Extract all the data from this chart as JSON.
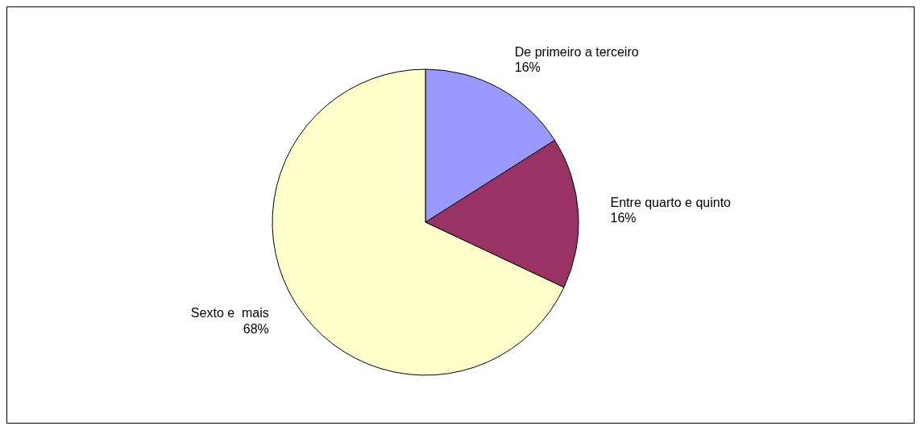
{
  "chart_data": {
    "type": "pie",
    "categories": [
      "De primeiro a terceiro",
      "Entre quarto e quinto",
      "Sexto e  mais"
    ],
    "values": [
      16,
      16,
      68
    ],
    "colors": [
      "#9999ff",
      "#993366",
      "#ffffcc"
    ],
    "value_labels": [
      "16%",
      "16%",
      "68%"
    ],
    "legend": false
  }
}
